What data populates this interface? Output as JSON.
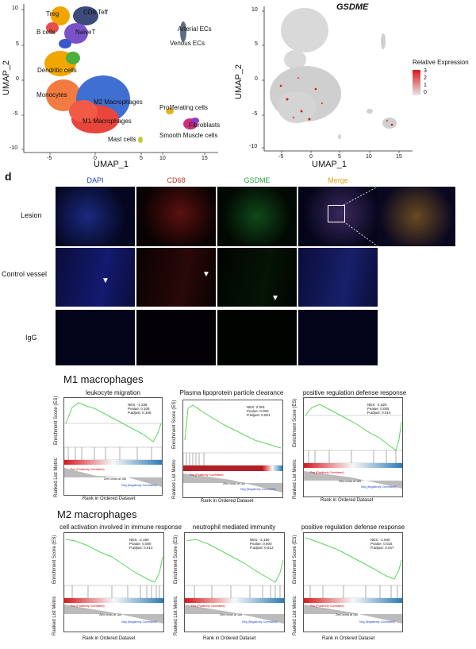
{
  "panel_c": {
    "umap_clusters": {
      "x_label": "UMAP_1",
      "y_label": "UMAP_2",
      "x_ticks": [
        "-5",
        "0",
        "5",
        "10",
        "15"
      ],
      "y_ticks": [
        "10",
        "5",
        "0",
        "-5",
        "-10"
      ],
      "cluster_labels": [
        "Treg",
        "CD8 Teff",
        "B cells",
        "NaiveT",
        "Arterial ECs",
        "Venous ECs",
        "Dendritic cells",
        "Monocytes",
        "M2 Macrophages",
        "M1 Macrophages",
        "Proliferating cells",
        "Fibroblasts",
        "Smooth Muscle cells",
        "Mast cells"
      ]
    },
    "umap_gsdme": {
      "title": "GSDME",
      "x_label": "UMAP_1",
      "y_label": "UMAP_2",
      "x_ticks": [
        "-5",
        "0",
        "5",
        "10",
        "15"
      ],
      "y_ticks": [
        "10",
        "5",
        "0",
        "-5",
        "-10"
      ],
      "legend_title": "Relative Expression",
      "legend_ticks": [
        "3",
        "2",
        "1",
        "0"
      ],
      "colors": {
        "low": "#d9d9d9",
        "high": "#d7191c"
      }
    }
  },
  "panel_d": {
    "label": "d",
    "columns": [
      "DAPI",
      "CD68",
      "GSDME",
      "Merge"
    ],
    "column_colors": [
      "#1f3fbf",
      "#c0392b",
      "#2e9e3e",
      "#e0a21a"
    ],
    "rows": [
      "Lesion",
      "Control vessel",
      "IgG"
    ]
  },
  "gsea": {
    "m1": {
      "section": "M1 macrophages",
      "panels": [
        {
          "title": "leukocyte migration",
          "stats": "NES: -1.338\nPvalue: 0.106\nP.adjust: 0.106"
        },
        {
          "title": "Plasma lipoprotein particle clearance",
          "stats": "NES: 2.501\nPvalue: 0.000\nP.adjust: 0.001"
        },
        {
          "title": "positive regulation defense response",
          "stats": "NES: -1.820\nPvalue: 0.005\nP.adjust: 0.014"
        }
      ]
    },
    "m2": {
      "section": "M2 macrophages",
      "panels": [
        {
          "title": "cell activation involved in immune response",
          "stats": "NES: -2.180\nPvalue: 0.000\nP.adjust: 0.012"
        },
        {
          "title": "neutrophil mediated immunity",
          "stats": "NES: -2.180\nPvalue: 0.000\nP.adjust: 0.012"
        },
        {
          "title": "positive regulation defense response",
          "stats": "NES: -1.940\nPvalue: 0.016\nP.adjust: 0.047"
        }
      ]
    },
    "axis": {
      "es_label": "Enrichment Score (ES)",
      "metric_label": "Ranked List Metric",
      "x_label": "Rank in Ordered Dataset",
      "pos_label": "Pos (Positively Correlated)",
      "neg_label": "Neg (Negatively Correlated)",
      "zero_label": "Zero cross at 185"
    }
  }
}
